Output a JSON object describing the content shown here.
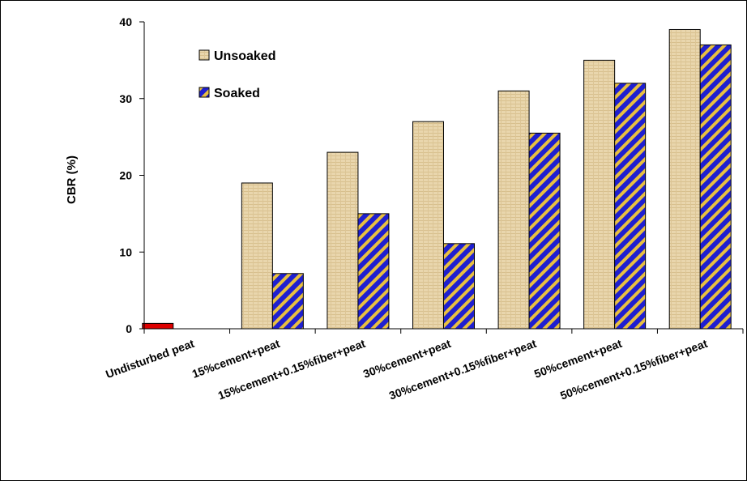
{
  "chart_data": {
    "type": "bar",
    "title": "",
    "xlabel": "",
    "ylabel": "CBR (%)",
    "ylim": [
      0,
      40
    ],
    "yticks": [
      0,
      10,
      20,
      30,
      40
    ],
    "grid": false,
    "legend_position": "top-left",
    "categories": [
      "Undisturbed peat",
      "15%cement+peat",
      "15%cement+0.15%fiber+peat",
      "30%cement+peat",
      "30%cement+0.15%fiber+peat",
      "50%cement+peat",
      "50%cement+0.15%fiber+peat"
    ],
    "series": [
      {
        "name": "Unsoaked",
        "values": [
          0.7,
          19,
          23,
          27,
          31,
          35,
          39
        ],
        "color": "#e8d4a8"
      },
      {
        "name": "Soaked",
        "values": [
          null,
          7.2,
          15,
          11.1,
          25.5,
          32,
          37
        ],
        "color": "#1f1fd0"
      }
    ],
    "highlight_color": "#dd0000",
    "stripe_color": "#e8c040"
  }
}
